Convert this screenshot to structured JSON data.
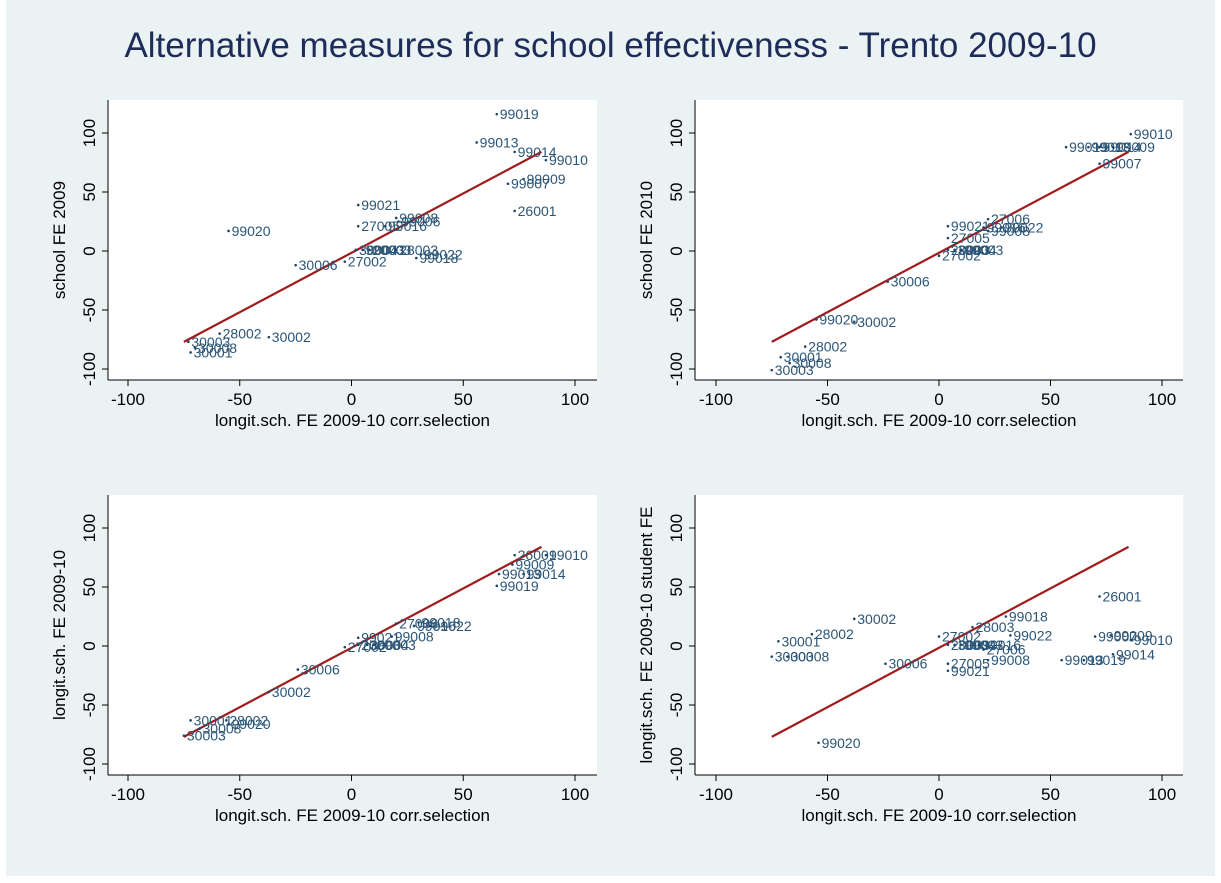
{
  "title": "Alternative measures for school effectiveness - Trento 2009-10",
  "colors": {
    "background": "#eaf2f3",
    "plot_area": "#ffffff",
    "marker": "#1a476f",
    "label": "#2b5577",
    "fit_line": "#a01c1c",
    "title": "#1e2c5a"
  },
  "chart_data": [
    {
      "type": "scatter",
      "xlabel": "longit.sch. FE 2009-10 corr.selection",
      "ylabel": "school FE 2009",
      "xlim": [
        -100,
        100
      ],
      "ylim": [
        -100,
        100
      ],
      "xticks": [
        "-100",
        "-50",
        "0",
        "50",
        "100"
      ],
      "yticks": [
        "-100",
        "-50",
        "0",
        "50",
        "100"
      ],
      "grid": false,
      "fit_line": {
        "x": [
          -75,
          85
        ],
        "y": [
          -77,
          84
        ]
      },
      "points": [
        {
          "x": 65,
          "y": 116,
          "label": "99019"
        },
        {
          "x": 56,
          "y": 92,
          "label": "99013"
        },
        {
          "x": 73,
          "y": 84,
          "label": "99014"
        },
        {
          "x": 87,
          "y": 77,
          "label": "99010"
        },
        {
          "x": 77,
          "y": 61,
          "label": "99009"
        },
        {
          "x": 70,
          "y": 57,
          "label": "99007"
        },
        {
          "x": 73,
          "y": 34,
          "label": "26001"
        },
        {
          "x": 3,
          "y": 39,
          "label": "99021"
        },
        {
          "x": 20,
          "y": 28,
          "label": "99008"
        },
        {
          "x": 21,
          "y": 25,
          "label": "99006"
        },
        {
          "x": 3,
          "y": 21,
          "label": "27005"
        },
        {
          "x": 15,
          "y": 21,
          "label": "99016"
        },
        {
          "x": -55,
          "y": 17,
          "label": "99020"
        },
        {
          "x": 2,
          "y": 1,
          "label": "30004"
        },
        {
          "x": 5,
          "y": 1,
          "label": "99003"
        },
        {
          "x": 8,
          "y": 1,
          "label": "20003"
        },
        {
          "x": 20,
          "y": 1,
          "label": "28003"
        },
        {
          "x": 31,
          "y": -3,
          "label": "99022"
        },
        {
          "x": 29,
          "y": -6,
          "label": "99018"
        },
        {
          "x": -25,
          "y": -12,
          "label": "30006"
        },
        {
          "x": -3,
          "y": -9,
          "label": "27002"
        },
        {
          "x": -59,
          "y": -70,
          "label": "28002"
        },
        {
          "x": -37,
          "y": -73,
          "label": "30002"
        },
        {
          "x": -73,
          "y": -77,
          "label": "30003"
        },
        {
          "x": -70,
          "y": -82,
          "label": "30008"
        },
        {
          "x": -72,
          "y": -86,
          "label": "30001"
        }
      ]
    },
    {
      "type": "scatter",
      "xlabel": "longit.sch. FE 2009-10 corr.selection",
      "ylabel": "school FE 2010",
      "xlim": [
        -100,
        100
      ],
      "ylim": [
        -100,
        100
      ],
      "xticks": [
        "-100",
        "-50",
        "0",
        "50",
        "100"
      ],
      "yticks": [
        "-100",
        "-50",
        "0",
        "50",
        "100"
      ],
      "grid": false,
      "fit_line": {
        "x": [
          -75,
          85
        ],
        "y": [
          -77,
          84
        ]
      },
      "points": [
        {
          "x": 86,
          "y": 99,
          "label": "99010"
        },
        {
          "x": 57,
          "y": 88,
          "label": "99019"
        },
        {
          "x": 67,
          "y": 88,
          "label": "99013"
        },
        {
          "x": 72,
          "y": 88,
          "label": "99014"
        },
        {
          "x": 78,
          "y": 88,
          "label": "99009"
        },
        {
          "x": 72,
          "y": 74,
          "label": "99007"
        },
        {
          "x": 22,
          "y": 27,
          "label": "27006"
        },
        {
          "x": 4,
          "y": 21,
          "label": "99021"
        },
        {
          "x": 20,
          "y": 20,
          "label": "99016"
        },
        {
          "x": 28,
          "y": 20,
          "label": "99022"
        },
        {
          "x": 22,
          "y": 17,
          "label": "99008"
        },
        {
          "x": 4,
          "y": 11,
          "label": "27005"
        },
        {
          "x": 4,
          "y": 1,
          "label": "20003"
        },
        {
          "x": 7,
          "y": 1,
          "label": "30004"
        },
        {
          "x": 10,
          "y": 1,
          "label": "99003"
        },
        {
          "x": 0,
          "y": -4,
          "label": "27002"
        },
        {
          "x": -23,
          "y": -26,
          "label": "30006"
        },
        {
          "x": -55,
          "y": -58,
          "label": "99020"
        },
        {
          "x": -38,
          "y": -60,
          "label": "30002"
        },
        {
          "x": -60,
          "y": -81,
          "label": "28002"
        },
        {
          "x": -71,
          "y": -90,
          "label": "30001"
        },
        {
          "x": -67,
          "y": -95,
          "label": "30008"
        },
        {
          "x": -75,
          "y": -101,
          "label": "30003"
        }
      ]
    },
    {
      "type": "scatter",
      "xlabel": "longit.sch. FE 2009-10 corr.selection",
      "ylabel": "longit.sch. FE 2009-10",
      "xlim": [
        -100,
        100
      ],
      "ylim": [
        -100,
        100
      ],
      "xticks": [
        "-100",
        "-50",
        "0",
        "50",
        "100"
      ],
      "yticks": [
        "-100",
        "-50",
        "0",
        "50",
        "100"
      ],
      "grid": false,
      "fit_line": {
        "x": [
          -75,
          85
        ],
        "y": [
          -77,
          84
        ]
      },
      "points": [
        {
          "x": 73,
          "y": 77,
          "label": "26001"
        },
        {
          "x": 87,
          "y": 77,
          "label": "99010"
        },
        {
          "x": 72,
          "y": 69,
          "label": "99009"
        },
        {
          "x": 66,
          "y": 61,
          "label": "99013"
        },
        {
          "x": 77,
          "y": 61,
          "label": "99014"
        },
        {
          "x": 65,
          "y": 51,
          "label": "99019"
        },
        {
          "x": 20,
          "y": 19,
          "label": "27006"
        },
        {
          "x": 30,
          "y": 20,
          "label": "99018"
        },
        {
          "x": 28,
          "y": 17,
          "label": "99016"
        },
        {
          "x": 35,
          "y": 17,
          "label": "99022"
        },
        {
          "x": 3,
          "y": 7,
          "label": "99021"
        },
        {
          "x": 18,
          "y": 8,
          "label": "99008"
        },
        {
          "x": 3,
          "y": 1,
          "label": "20003"
        },
        {
          "x": 7,
          "y": 1,
          "label": "30004"
        },
        {
          "x": 10,
          "y": 1,
          "label": "99003"
        },
        {
          "x": -3,
          "y": -1,
          "label": "27002"
        },
        {
          "x": -24,
          "y": -20,
          "label": "30006"
        },
        {
          "x": -37,
          "y": -39,
          "label": "30002"
        },
        {
          "x": -72,
          "y": -63,
          "label": "30001"
        },
        {
          "x": -56,
          "y": -63,
          "label": "28002"
        },
        {
          "x": -55,
          "y": -66,
          "label": "99020"
        },
        {
          "x": -68,
          "y": -70,
          "label": "30008"
        },
        {
          "x": -75,
          "y": -76,
          "label": "30003"
        }
      ]
    },
    {
      "type": "scatter",
      "xlabel": "longit.sch. FE 2009-10 corr.selection",
      "ylabel": "longit.sch. FE 2009-10 student FE",
      "xlim": [
        -100,
        100
      ],
      "ylim": [
        -100,
        100
      ],
      "xticks": [
        "-100",
        "-50",
        "0",
        "50",
        "100"
      ],
      "yticks": [
        "-100",
        "-50",
        "0",
        "50",
        "100"
      ],
      "grid": false,
      "fit_line": {
        "x": [
          -75,
          85
        ],
        "y": [
          -77,
          84
        ]
      },
      "points": [
        {
          "x": 72,
          "y": 42,
          "label": "26001"
        },
        {
          "x": -38,
          "y": 23,
          "label": "30002"
        },
        {
          "x": 30,
          "y": 25,
          "label": "99018"
        },
        {
          "x": 15,
          "y": 16,
          "label": "28003"
        },
        {
          "x": -57,
          "y": 10,
          "label": "28002"
        },
        {
          "x": 0,
          "y": 8,
          "label": "27002"
        },
        {
          "x": 32,
          "y": 9,
          "label": "99022"
        },
        {
          "x": 77,
          "y": 9,
          "label": "99009"
        },
        {
          "x": 70,
          "y": 8,
          "label": "99007"
        },
        {
          "x": 86,
          "y": 5,
          "label": "99010"
        },
        {
          "x": -72,
          "y": 4,
          "label": "30001"
        },
        {
          "x": 4,
          "y": 1,
          "label": "20003"
        },
        {
          "x": 7,
          "y": 1,
          "label": "30004"
        },
        {
          "x": 10,
          "y": 1,
          "label": "99003"
        },
        {
          "x": 18,
          "y": 1,
          "label": "99016"
        },
        {
          "x": 20,
          "y": -3,
          "label": "27006"
        },
        {
          "x": 78,
          "y": -7,
          "label": "99014"
        },
        {
          "x": -75,
          "y": -9,
          "label": "30003"
        },
        {
          "x": -68,
          "y": -9,
          "label": "30008"
        },
        {
          "x": 55,
          "y": -12,
          "label": "99013"
        },
        {
          "x": 65,
          "y": -12,
          "label": "99019"
        },
        {
          "x": 22,
          "y": -12,
          "label": "99008"
        },
        {
          "x": -24,
          "y": -15,
          "label": "30006"
        },
        {
          "x": 4,
          "y": -15,
          "label": "27005"
        },
        {
          "x": 4,
          "y": -21,
          "label": "99021"
        },
        {
          "x": -54,
          "y": -82,
          "label": "99020"
        }
      ]
    }
  ]
}
